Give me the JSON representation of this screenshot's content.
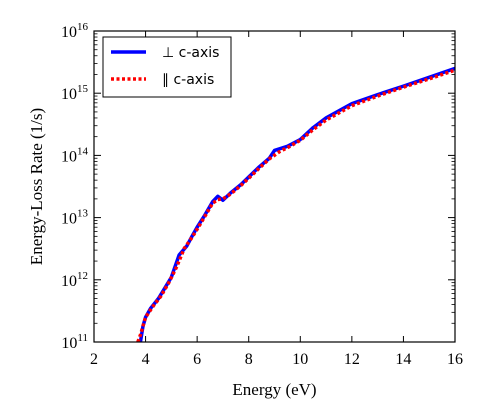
{
  "chart_data": {
    "type": "line",
    "xlabel": "Energy (eV)",
    "ylabel": "Energy-Loss Rate (1/s)",
    "xlim": [
      2,
      16
    ],
    "ylim": [
      100000000000.0,
      1e+16
    ],
    "yscale": "log",
    "grid": false,
    "legend_position": "top-left",
    "x_ticks": [
      2,
      4,
      6,
      8,
      10,
      12,
      14,
      16
    ],
    "x_tick_labels": [
      "2",
      "4",
      "6",
      "8",
      "10",
      "12",
      "14",
      "16"
    ],
    "y_ticks": [
      100000000000.0,
      1000000000000.0,
      10000000000000.0,
      100000000000000.0,
      1000000000000000.0,
      1e+16
    ],
    "y_tick_labels": [
      {
        "base": "10",
        "exp": "11"
      },
      {
        "base": "10",
        "exp": "12"
      },
      {
        "base": "10",
        "exp": "13"
      },
      {
        "base": "10",
        "exp": "14"
      },
      {
        "base": "10",
        "exp": "15"
      },
      {
        "base": "10",
        "exp": "16"
      }
    ],
    "series": [
      {
        "name": "⊥ c-axis",
        "color": "#0000ff",
        "style": "solid",
        "points": [
          [
            3.8,
            100000000000.0
          ],
          [
            3.9,
            180000000000.0
          ],
          [
            4.0,
            250000000000.0
          ],
          [
            4.2,
            350000000000.0
          ],
          [
            4.5,
            500000000000.0
          ],
          [
            4.8,
            800000000000.0
          ],
          [
            5.0,
            1100000000000.0
          ],
          [
            5.3,
            2500000000000.0
          ],
          [
            5.6,
            3500000000000.0
          ],
          [
            5.8,
            5000000000000.0
          ],
          [
            6.0,
            7000000000000.0
          ],
          [
            6.3,
            11000000000000.0
          ],
          [
            6.6,
            18000000000000.0
          ],
          [
            6.8,
            22000000000000.0
          ],
          [
            7.0,
            19000000000000.0
          ],
          [
            7.3,
            25000000000000.0
          ],
          [
            7.7,
            34000000000000.0
          ],
          [
            8.0,
            45000000000000.0
          ],
          [
            8.4,
            65000000000000.0
          ],
          [
            8.8,
            90000000000000.0
          ],
          [
            9.0,
            120000000000000.0
          ],
          [
            9.5,
            140000000000000.0
          ],
          [
            10.0,
            180000000000000.0
          ],
          [
            10.5,
            280000000000000.0
          ],
          [
            11.0,
            400000000000000.0
          ],
          [
            12.0,
            680000000000000.0
          ],
          [
            13.0,
            950000000000000.0
          ],
          [
            14.0,
            1300000000000000.0
          ],
          [
            15.0,
            1800000000000000.0
          ],
          [
            16.0,
            2500000000000000.0
          ]
        ]
      },
      {
        "name": "∥ c-axis",
        "color": "#ff0000",
        "style": "dotted",
        "points": [
          [
            3.7,
            100000000000.0
          ],
          [
            3.8,
            130000000000.0
          ],
          [
            4.0,
            250000000000.0
          ],
          [
            4.3,
            380000000000.0
          ],
          [
            4.6,
            550000000000.0
          ],
          [
            4.9,
            900000000000.0
          ],
          [
            5.2,
            1600000000000.0
          ],
          [
            5.5,
            3200000000000.0
          ],
          [
            5.8,
            4800000000000.0
          ],
          [
            6.0,
            6500000000000.0
          ],
          [
            6.3,
            10500000000000.0
          ],
          [
            6.6,
            17000000000000.0
          ],
          [
            6.8,
            19500000000000.0
          ],
          [
            7.0,
            20000000000000.0
          ],
          [
            7.3,
            24000000000000.0
          ],
          [
            7.7,
            33000000000000.0
          ],
          [
            8.0,
            43000000000000.0
          ],
          [
            8.4,
            62000000000000.0
          ],
          [
            8.8,
            88000000000000.0
          ],
          [
            9.2,
            115000000000000.0
          ],
          [
            9.6,
            140000000000000.0
          ],
          [
            10.0,
            175000000000000.0
          ],
          [
            10.5,
            260000000000000.0
          ],
          [
            11.0,
            370000000000000.0
          ],
          [
            12.0,
            630000000000000.0
          ],
          [
            13.0,
            900000000000000.0
          ],
          [
            14.0,
            1250000000000000.0
          ],
          [
            15.0,
            1700000000000000.0
          ],
          [
            16.0,
            2350000000000000.0
          ]
        ]
      }
    ]
  }
}
